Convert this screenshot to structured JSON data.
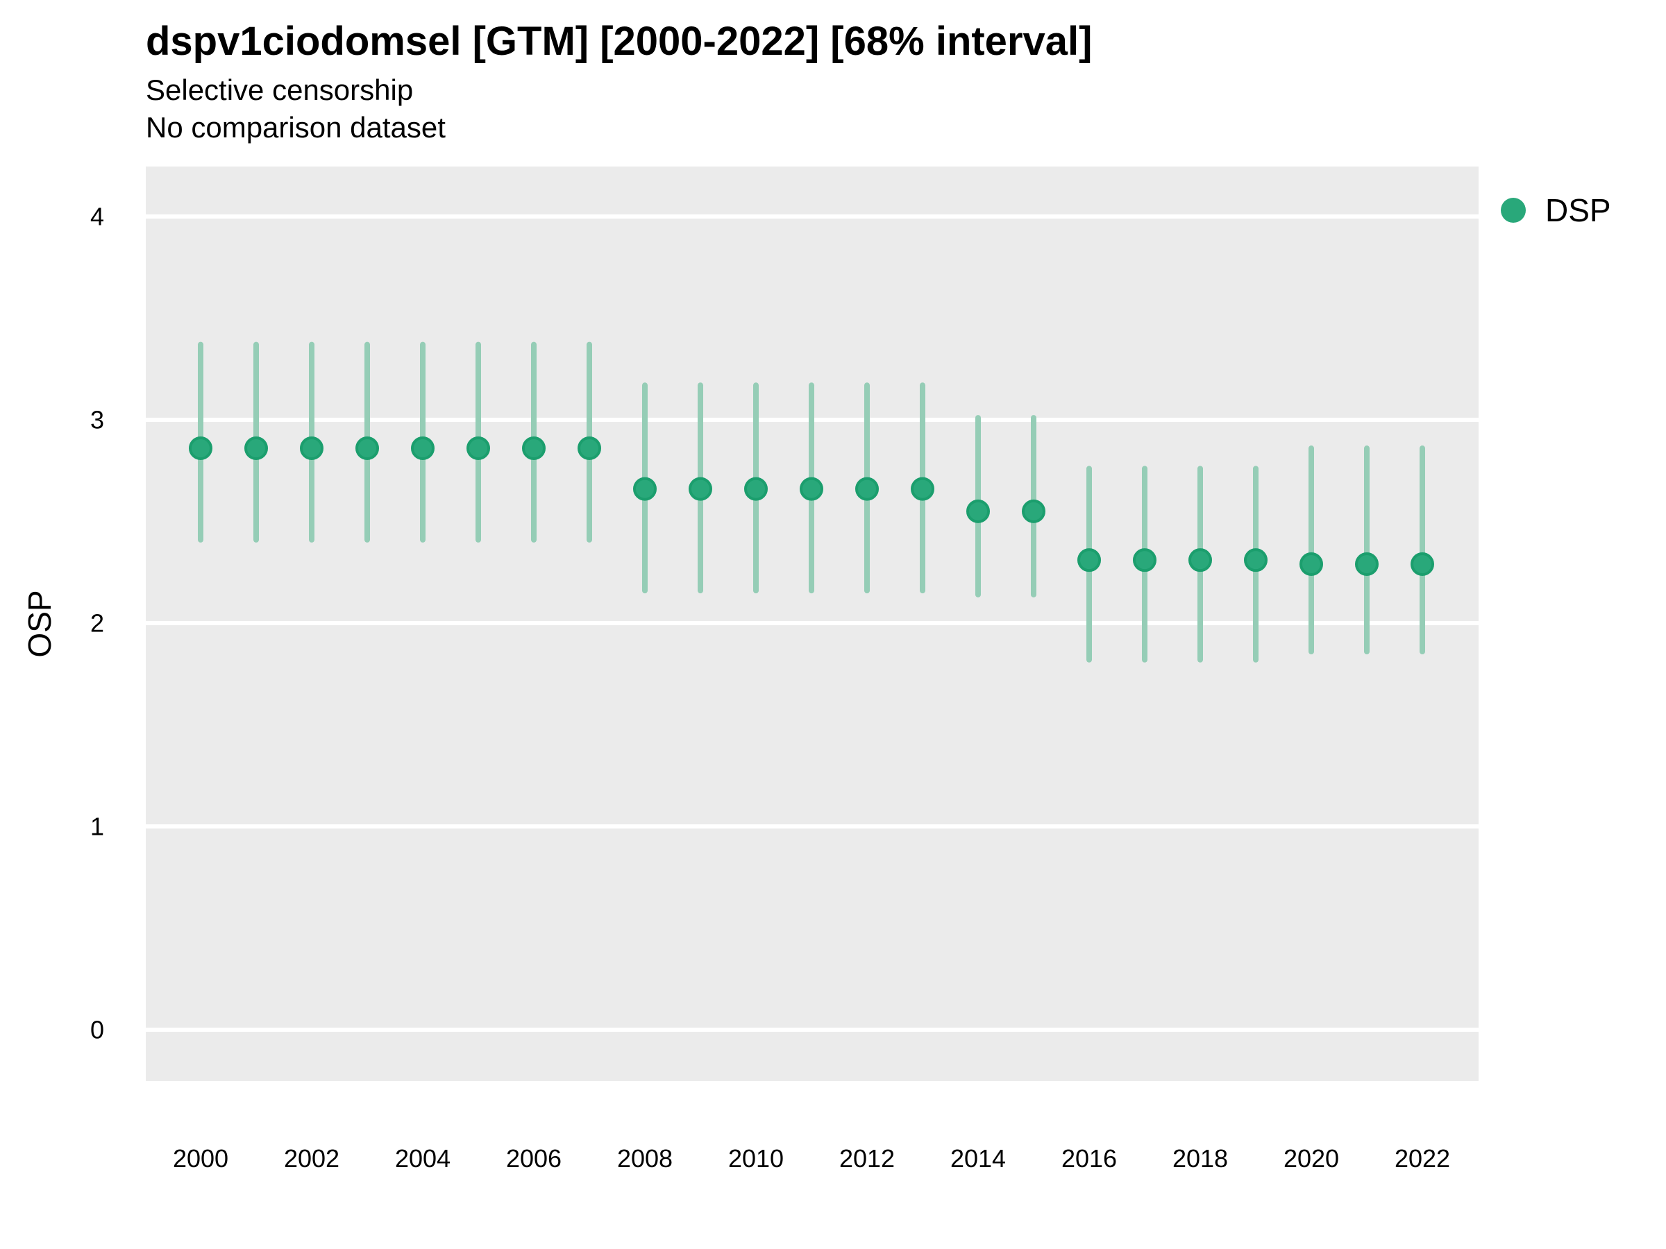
{
  "chart_data": {
    "type": "scatter",
    "variant": "pointrange",
    "title": "dspv1ciodomsel [GTM] [2000-2022] [68% interval]",
    "subtitle_lines": [
      "Selective censorship",
      "No comparison dataset"
    ],
    "xlabel": "",
    "ylabel": "OSP",
    "interval_level": "68%",
    "x_ticks": [
      2000,
      2002,
      2004,
      2006,
      2008,
      2010,
      2012,
      2014,
      2016,
      2018,
      2020,
      2022
    ],
    "y_ticks": [
      0,
      1,
      2,
      3,
      4
    ],
    "xlim": [
      1999,
      2023
    ],
    "ylim": [
      -0.25,
      4.25
    ],
    "grid": "major-horizontal-only",
    "legend": {
      "position": "right",
      "entries": [
        {
          "label": "DSP",
          "color": "#29a87a"
        }
      ]
    },
    "series": [
      {
        "name": "DSP",
        "points": [
          {
            "year": 2000,
            "value": 2.86,
            "lo": 2.41,
            "hi": 3.37
          },
          {
            "year": 2001,
            "value": 2.86,
            "lo": 2.41,
            "hi": 3.37
          },
          {
            "year": 2002,
            "value": 2.86,
            "lo": 2.41,
            "hi": 3.37
          },
          {
            "year": 2003,
            "value": 2.86,
            "lo": 2.41,
            "hi": 3.37
          },
          {
            "year": 2004,
            "value": 2.86,
            "lo": 2.41,
            "hi": 3.37
          },
          {
            "year": 2005,
            "value": 2.86,
            "lo": 2.41,
            "hi": 3.37
          },
          {
            "year": 2006,
            "value": 2.86,
            "lo": 2.41,
            "hi": 3.37
          },
          {
            "year": 2007,
            "value": 2.86,
            "lo": 2.41,
            "hi": 3.37
          },
          {
            "year": 2008,
            "value": 2.66,
            "lo": 2.16,
            "hi": 3.17
          },
          {
            "year": 2009,
            "value": 2.66,
            "lo": 2.16,
            "hi": 3.17
          },
          {
            "year": 2010,
            "value": 2.66,
            "lo": 2.16,
            "hi": 3.17
          },
          {
            "year": 2011,
            "value": 2.66,
            "lo": 2.16,
            "hi": 3.17
          },
          {
            "year": 2012,
            "value": 2.66,
            "lo": 2.16,
            "hi": 3.17
          },
          {
            "year": 2013,
            "value": 2.66,
            "lo": 2.16,
            "hi": 3.17
          },
          {
            "year": 2014,
            "value": 2.55,
            "lo": 2.14,
            "hi": 3.01
          },
          {
            "year": 2015,
            "value": 2.55,
            "lo": 2.14,
            "hi": 3.01
          },
          {
            "year": 2016,
            "value": 2.31,
            "lo": 1.82,
            "hi": 2.76
          },
          {
            "year": 2017,
            "value": 2.31,
            "lo": 1.82,
            "hi": 2.76
          },
          {
            "year": 2018,
            "value": 2.31,
            "lo": 1.82,
            "hi": 2.76
          },
          {
            "year": 2019,
            "value": 2.31,
            "lo": 1.82,
            "hi": 2.76
          },
          {
            "year": 2020,
            "value": 2.29,
            "lo": 1.86,
            "hi": 2.86
          },
          {
            "year": 2021,
            "value": 2.29,
            "lo": 1.86,
            "hi": 2.86
          },
          {
            "year": 2022,
            "value": 2.29,
            "lo": 1.86,
            "hi": 2.86
          }
        ]
      }
    ],
    "colors": {
      "panel_bg": "#ebebeb",
      "gridline": "#ffffff",
      "point_fill": "#29a87a",
      "point_stroke": "#1b9e6d",
      "interval": "#95cdb6",
      "text": "#000000"
    }
  }
}
